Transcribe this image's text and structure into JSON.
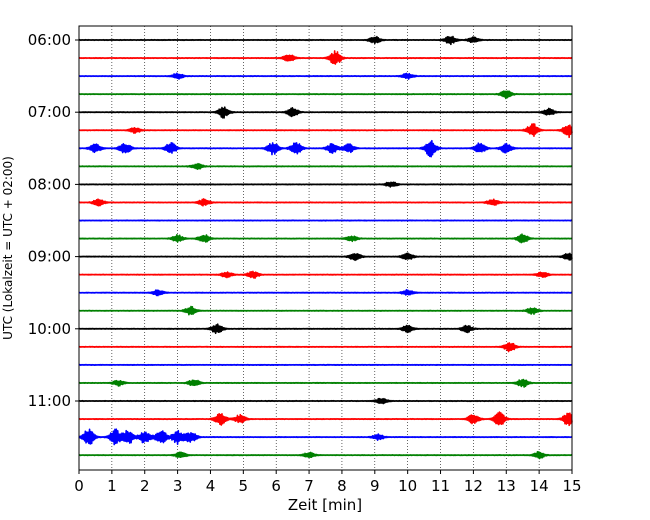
{
  "chart_data": {
    "type": "line",
    "title": "",
    "xlabel": "Zeit  [min]",
    "ylabel": "UTC (Lokalzeit = UTC + 02:00)",
    "xlim": [
      0,
      15
    ],
    "x_ticks": [
      "0",
      "1",
      "2",
      "3",
      "4",
      "5",
      "6",
      "7",
      "8",
      "9",
      "10",
      "11",
      "12",
      "13",
      "14",
      "15"
    ],
    "y_ticks": [
      "06:00",
      "07:00",
      "08:00",
      "09:00",
      "10:00",
      "11:00"
    ],
    "grid": "vertical dotted",
    "trace_colors": [
      "#000000",
      "#ff0000",
      "#0000ff",
      "#008000"
    ],
    "traces": [
      {
        "start": "06:00",
        "bursts": [
          [
            9.0,
            0.5
          ],
          [
            11.3,
            0.6
          ],
          [
            12.0,
            0.4
          ]
        ]
      },
      {
        "start": "06:15",
        "bursts": [
          [
            6.4,
            0.6
          ],
          [
            7.8,
            1.0
          ]
        ]
      },
      {
        "start": "06:30",
        "bursts": [
          [
            3.0,
            0.4
          ],
          [
            10.0,
            0.4
          ]
        ]
      },
      {
        "start": "06:45",
        "bursts": [
          [
            13.0,
            0.6
          ]
        ]
      },
      {
        "start": "07:00",
        "bursts": [
          [
            4.4,
            0.8
          ],
          [
            6.5,
            0.6
          ],
          [
            14.3,
            0.5
          ]
        ]
      },
      {
        "start": "07:15",
        "bursts": [
          [
            1.7,
            0.4
          ],
          [
            13.8,
            1.0
          ],
          [
            14.9,
            1.0
          ]
        ]
      },
      {
        "start": "07:30",
        "bursts": [
          [
            0.5,
            0.6
          ],
          [
            1.4,
            0.8
          ],
          [
            2.8,
            0.8
          ],
          [
            5.9,
            0.9
          ],
          [
            6.6,
            0.9
          ],
          [
            7.7,
            0.7
          ],
          [
            8.2,
            0.7
          ],
          [
            10.7,
            1.2
          ],
          [
            12.2,
            0.8
          ],
          [
            13.0,
            0.7
          ]
        ]
      },
      {
        "start": "07:45",
        "bursts": [
          [
            3.6,
            0.4
          ]
        ]
      },
      {
        "start": "08:00",
        "bursts": [
          [
            9.5,
            0.4
          ]
        ]
      },
      {
        "start": "08:15",
        "bursts": [
          [
            0.6,
            0.5
          ],
          [
            3.8,
            0.5
          ],
          [
            12.6,
            0.5
          ]
        ]
      },
      {
        "start": "08:30",
        "bursts": []
      },
      {
        "start": "08:45",
        "bursts": [
          [
            3.0,
            0.5
          ],
          [
            3.8,
            0.6
          ],
          [
            8.3,
            0.4
          ],
          [
            13.5,
            0.6
          ]
        ]
      },
      {
        "start": "09:00",
        "bursts": [
          [
            8.4,
            0.6
          ],
          [
            10.0,
            0.5
          ],
          [
            14.9,
            0.5
          ]
        ]
      },
      {
        "start": "09:15",
        "bursts": [
          [
            4.5,
            0.4
          ],
          [
            5.3,
            0.5
          ],
          [
            14.1,
            0.4
          ]
        ]
      },
      {
        "start": "09:30",
        "bursts": [
          [
            2.4,
            0.4
          ],
          [
            10.0,
            0.4
          ]
        ]
      },
      {
        "start": "09:45",
        "bursts": [
          [
            3.4,
            0.6
          ],
          [
            13.8,
            0.5
          ]
        ]
      },
      {
        "start": "10:00",
        "bursts": [
          [
            4.2,
            0.7
          ],
          [
            10.0,
            0.5
          ],
          [
            11.8,
            0.5
          ]
        ]
      },
      {
        "start": "10:15",
        "bursts": [
          [
            13.1,
            0.7
          ]
        ]
      },
      {
        "start": "10:30",
        "bursts": []
      },
      {
        "start": "10:45",
        "bursts": [
          [
            1.2,
            0.4
          ],
          [
            3.5,
            0.5
          ],
          [
            13.5,
            0.6
          ]
        ]
      },
      {
        "start": "11:00",
        "bursts": [
          [
            9.2,
            0.4
          ]
        ]
      },
      {
        "start": "11:15",
        "bursts": [
          [
            4.3,
            0.9
          ],
          [
            4.9,
            0.6
          ],
          [
            12.0,
            0.7
          ],
          [
            12.8,
            1.0
          ],
          [
            14.9,
            1.0
          ]
        ]
      },
      {
        "start": "11:30",
        "bursts": [
          [
            0.3,
            1.2
          ],
          [
            1.1,
            1.2
          ],
          [
            1.5,
            1.1
          ],
          [
            2.0,
            0.9
          ],
          [
            2.5,
            1.0
          ],
          [
            3.0,
            1.0
          ],
          [
            3.4,
            0.8
          ],
          [
            9.1,
            0.4
          ]
        ]
      },
      {
        "start": "11:45",
        "bursts": [
          [
            3.1,
            0.4
          ],
          [
            7.0,
            0.4
          ],
          [
            14.0,
            0.5
          ]
        ]
      }
    ]
  }
}
